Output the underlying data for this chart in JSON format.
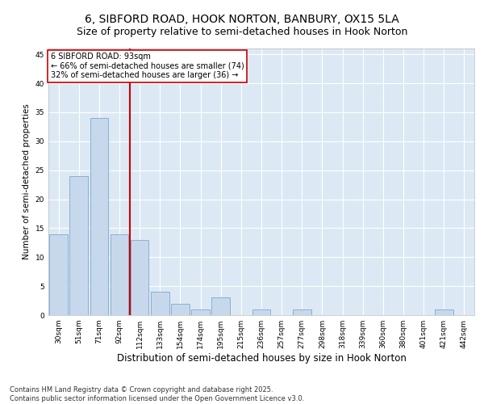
{
  "title": "6, SIBFORD ROAD, HOOK NORTON, BANBURY, OX15 5LA",
  "subtitle": "Size of property relative to semi-detached houses in Hook Norton",
  "xlabel": "Distribution of semi-detached houses by size in Hook Norton",
  "ylabel": "Number of semi-detached properties",
  "categories": [
    "30sqm",
    "51sqm",
    "71sqm",
    "92sqm",
    "112sqm",
    "133sqm",
    "154sqm",
    "174sqm",
    "195sqm",
    "215sqm",
    "236sqm",
    "257sqm",
    "277sqm",
    "298sqm",
    "318sqm",
    "339sqm",
    "360sqm",
    "380sqm",
    "401sqm",
    "421sqm",
    "442sqm"
  ],
  "values": [
    14,
    24,
    34,
    14,
    13,
    4,
    2,
    1,
    3,
    0,
    1,
    0,
    1,
    0,
    0,
    0,
    0,
    0,
    0,
    1,
    0
  ],
  "bar_color": "#c8d8ec",
  "bar_edge_color": "#7aa8cc",
  "vline_color": "#cc0000",
  "annotation_text": "6 SIBFORD ROAD: 93sqm\n← 66% of semi-detached houses are smaller (74)\n32% of semi-detached houses are larger (36) →",
  "annotation_box_color": "#cc0000",
  "ylim": [
    0,
    46
  ],
  "yticks": [
    0,
    5,
    10,
    15,
    20,
    25,
    30,
    35,
    40,
    45
  ],
  "background_color": "#dce9f5",
  "grid_color": "#ffffff",
  "footer": "Contains HM Land Registry data © Crown copyright and database right 2025.\nContains public sector information licensed under the Open Government Licence v3.0.",
  "title_fontsize": 10,
  "subtitle_fontsize": 9,
  "xlabel_fontsize": 8.5,
  "ylabel_fontsize": 7.5,
  "tick_fontsize": 6.5,
  "annotation_fontsize": 7,
  "footer_fontsize": 6
}
